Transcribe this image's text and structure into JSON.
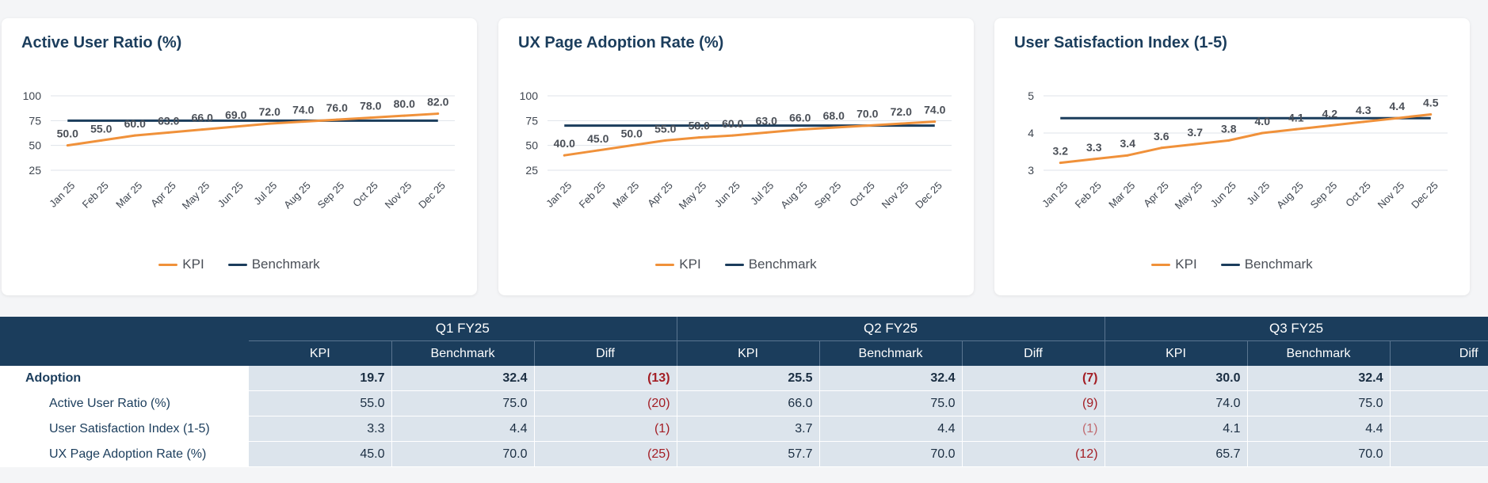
{
  "charts": [
    {
      "title": "Active User Ratio (%)",
      "legend": {
        "kpi": "KPI",
        "benchmark": "Benchmark"
      }
    },
    {
      "title": "UX Page Adoption Rate (%)",
      "legend": {
        "kpi": "KPI",
        "benchmark": "Benchmark"
      }
    },
    {
      "title": "User Satisfaction Index (1-5)",
      "legend": {
        "kpi": "KPI",
        "benchmark": "Benchmark"
      }
    }
  ],
  "colors": {
    "kpi": "#f0913a",
    "benchmark": "#1b3d5c",
    "grid": "#dfe3ea",
    "negative": "#a31d24"
  },
  "chart_data": [
    {
      "type": "line",
      "title": "Active User Ratio (%)",
      "categories": [
        "Jan 25",
        "Feb 25",
        "Mar 25",
        "Apr 25",
        "May 25",
        "Jun 25",
        "Jul 25",
        "Aug 25",
        "Sep 25",
        "Oct 25",
        "Nov 25",
        "Dec 25"
      ],
      "series": [
        {
          "name": "KPI",
          "values": [
            50.0,
            55.0,
            60.0,
            63.0,
            66.0,
            69.0,
            72.0,
            74.0,
            76.0,
            78.0,
            80.0,
            82.0
          ],
          "labels": [
            "50.0",
            "55.0",
            "60.0",
            "63.0",
            "66.0",
            "69.0",
            "72.0",
            "74.0",
            "76.0",
            "78.0",
            "80.0",
            "82.0"
          ]
        },
        {
          "name": "Benchmark",
          "values": [
            75,
            75,
            75,
            75,
            75,
            75,
            75,
            75,
            75,
            75,
            75,
            75
          ]
        }
      ],
      "yticks": [
        "100",
        "75",
        "50",
        "25"
      ],
      "ytick_values": [
        100,
        75,
        50,
        25
      ],
      "ylim": [
        25,
        100
      ],
      "grid": true,
      "legend_position": "bottom"
    },
    {
      "type": "line",
      "title": "UX Page Adoption Rate (%)",
      "categories": [
        "Jan 25",
        "Feb 25",
        "Mar 25",
        "Apr 25",
        "May 25",
        "Jun 25",
        "Jul 25",
        "Aug 25",
        "Sep 25",
        "Oct 25",
        "Nov 25",
        "Dec 25"
      ],
      "series": [
        {
          "name": "KPI",
          "values": [
            40.0,
            45.0,
            50.0,
            55.0,
            58.0,
            60.0,
            63.0,
            66.0,
            68.0,
            70.0,
            72.0,
            74.0
          ],
          "labels": [
            "40.0",
            "45.0",
            "50.0",
            "55.0",
            "58.0",
            "60.0",
            "63.0",
            "66.0",
            "68.0",
            "70.0",
            "72.0",
            "74.0"
          ]
        },
        {
          "name": "Benchmark",
          "values": [
            70,
            70,
            70,
            70,
            70,
            70,
            70,
            70,
            70,
            70,
            70,
            70
          ]
        }
      ],
      "yticks": [
        "100",
        "75",
        "50",
        "25"
      ],
      "ytick_values": [
        100,
        75,
        50,
        25
      ],
      "ylim": [
        25,
        100
      ],
      "grid": true,
      "legend_position": "bottom"
    },
    {
      "type": "line",
      "title": "User Satisfaction Index (1-5)",
      "categories": [
        "Jan 25",
        "Feb 25",
        "Mar 25",
        "Apr 25",
        "May 25",
        "Jun 25",
        "Jul 25",
        "Aug 25",
        "Sep 25",
        "Oct 25",
        "Nov 25",
        "Dec 25"
      ],
      "series": [
        {
          "name": "KPI",
          "values": [
            3.2,
            3.3,
            3.4,
            3.6,
            3.7,
            3.8,
            4.0,
            4.1,
            4.2,
            4.3,
            4.4,
            4.5
          ],
          "labels": [
            "3.2",
            "3.3",
            "3.4",
            "3.6",
            "3.7",
            "3.8",
            "4.0",
            "4.1",
            "4.2",
            "4.3",
            "4.4",
            "4.5"
          ]
        },
        {
          "name": "Benchmark",
          "values": [
            4.4,
            4.4,
            4.4,
            4.4,
            4.4,
            4.4,
            4.4,
            4.4,
            4.4,
            4.4,
            4.4,
            4.4
          ]
        }
      ],
      "yticks": [
        "5",
        "4",
        "3"
      ],
      "ytick_values": [
        5,
        4,
        3
      ],
      "ylim": [
        3,
        5
      ],
      "grid": true,
      "legend_position": "bottom"
    }
  ],
  "table": {
    "quarters": [
      "Q1 FY25",
      "Q2 FY25",
      "Q3 FY25"
    ],
    "subheaders": [
      "KPI",
      "Benchmark",
      "Diff"
    ],
    "rows": [
      {
        "label": "Adoption",
        "type": "group",
        "cells": [
          "19.7",
          "32.4",
          "(13)",
          "25.5",
          "32.4",
          "(7)",
          "30.0",
          "32.4",
          ""
        ]
      },
      {
        "label": "Active User Ratio (%)",
        "type": "sub",
        "cells": [
          "55.0",
          "75.0",
          "(20)",
          "66.0",
          "75.0",
          "(9)",
          "74.0",
          "75.0",
          ""
        ]
      },
      {
        "label": "User Satisfaction Index (1-5)",
        "type": "sub",
        "cells": [
          "3.3",
          "4.4",
          "(1)",
          "3.7",
          "4.4",
          "(1)",
          "4.1",
          "4.4",
          ""
        ]
      },
      {
        "label": "UX Page Adoption Rate (%)",
        "type": "sub",
        "cells": [
          "45.0",
          "70.0",
          "(25)",
          "57.7",
          "70.0",
          "(12)",
          "65.7",
          "70.0",
          ""
        ]
      }
    ]
  }
}
